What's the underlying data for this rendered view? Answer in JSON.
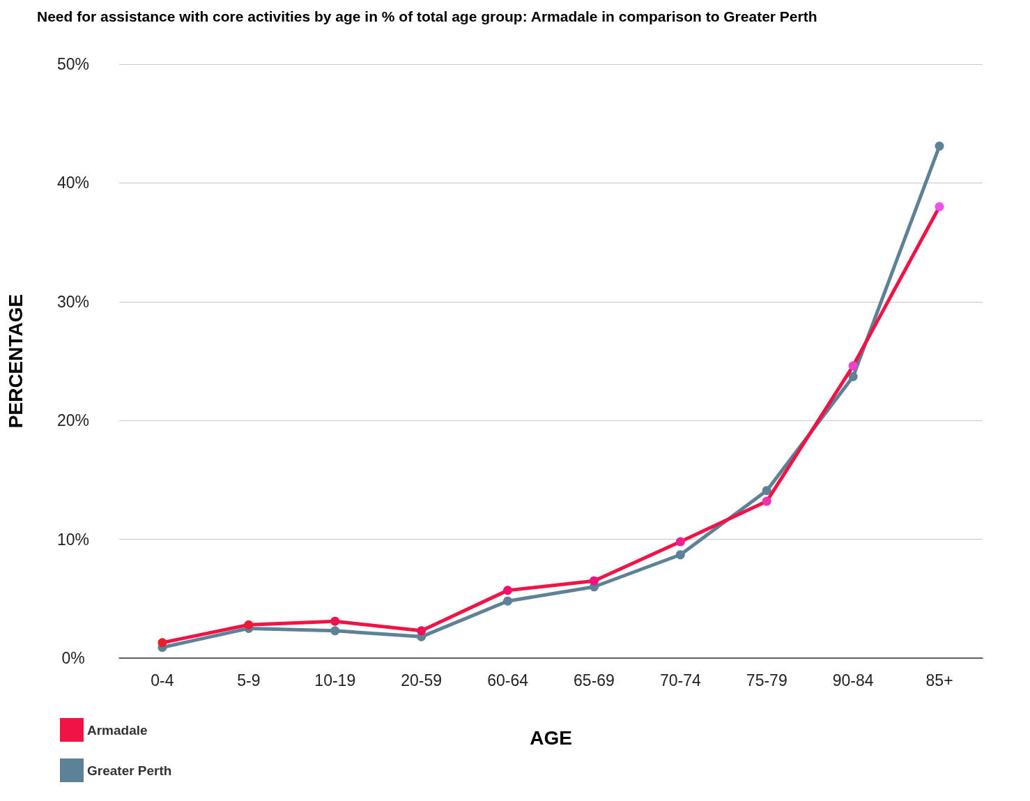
{
  "chart_data": {
    "type": "line",
    "title": "Need for assistance with core activities by age in % of total age group: Armadale in comparison to Greater Perth",
    "xlabel": "AGE",
    "ylabel": "PERCENTAGE",
    "categories": [
      "0-4",
      "5-9",
      "10-19",
      "20-59",
      "60-64",
      "65-69",
      "70-74",
      "75-79",
      "90-84",
      "85+"
    ],
    "series": [
      {
        "name": "Armadale",
        "color": "#f01446",
        "colors": [
          "#e8202a",
          "#ee1838",
          "#f01048",
          "#f0105a",
          "#f01070",
          "#f01080",
          "#f02090",
          "#f030b0",
          "#f040d0",
          "#f050f0"
        ],
        "values": [
          1.3,
          2.8,
          3.1,
          2.3,
          5.7,
          6.5,
          9.8,
          13.2,
          24.6,
          38.0
        ]
      },
      {
        "name": "Greater Perth",
        "color": "#5d8196",
        "values": [
          0.9,
          2.5,
          2.3,
          1.8,
          4.8,
          6.0,
          8.7,
          14.1,
          23.7,
          43.1
        ]
      }
    ],
    "ylim": [
      0,
      50
    ],
    "yticks": [
      {
        "value": 0,
        "label": "0%"
      },
      {
        "value": 10,
        "label": "10%"
      },
      {
        "value": 20,
        "label": "20%"
      },
      {
        "value": 30,
        "label": "30%"
      },
      {
        "value": 40,
        "label": "40%"
      },
      {
        "value": 50,
        "label": "50%"
      }
    ],
    "grid": "y",
    "legend": "bottom left",
    "marker": "circle",
    "line_style": "solid"
  }
}
